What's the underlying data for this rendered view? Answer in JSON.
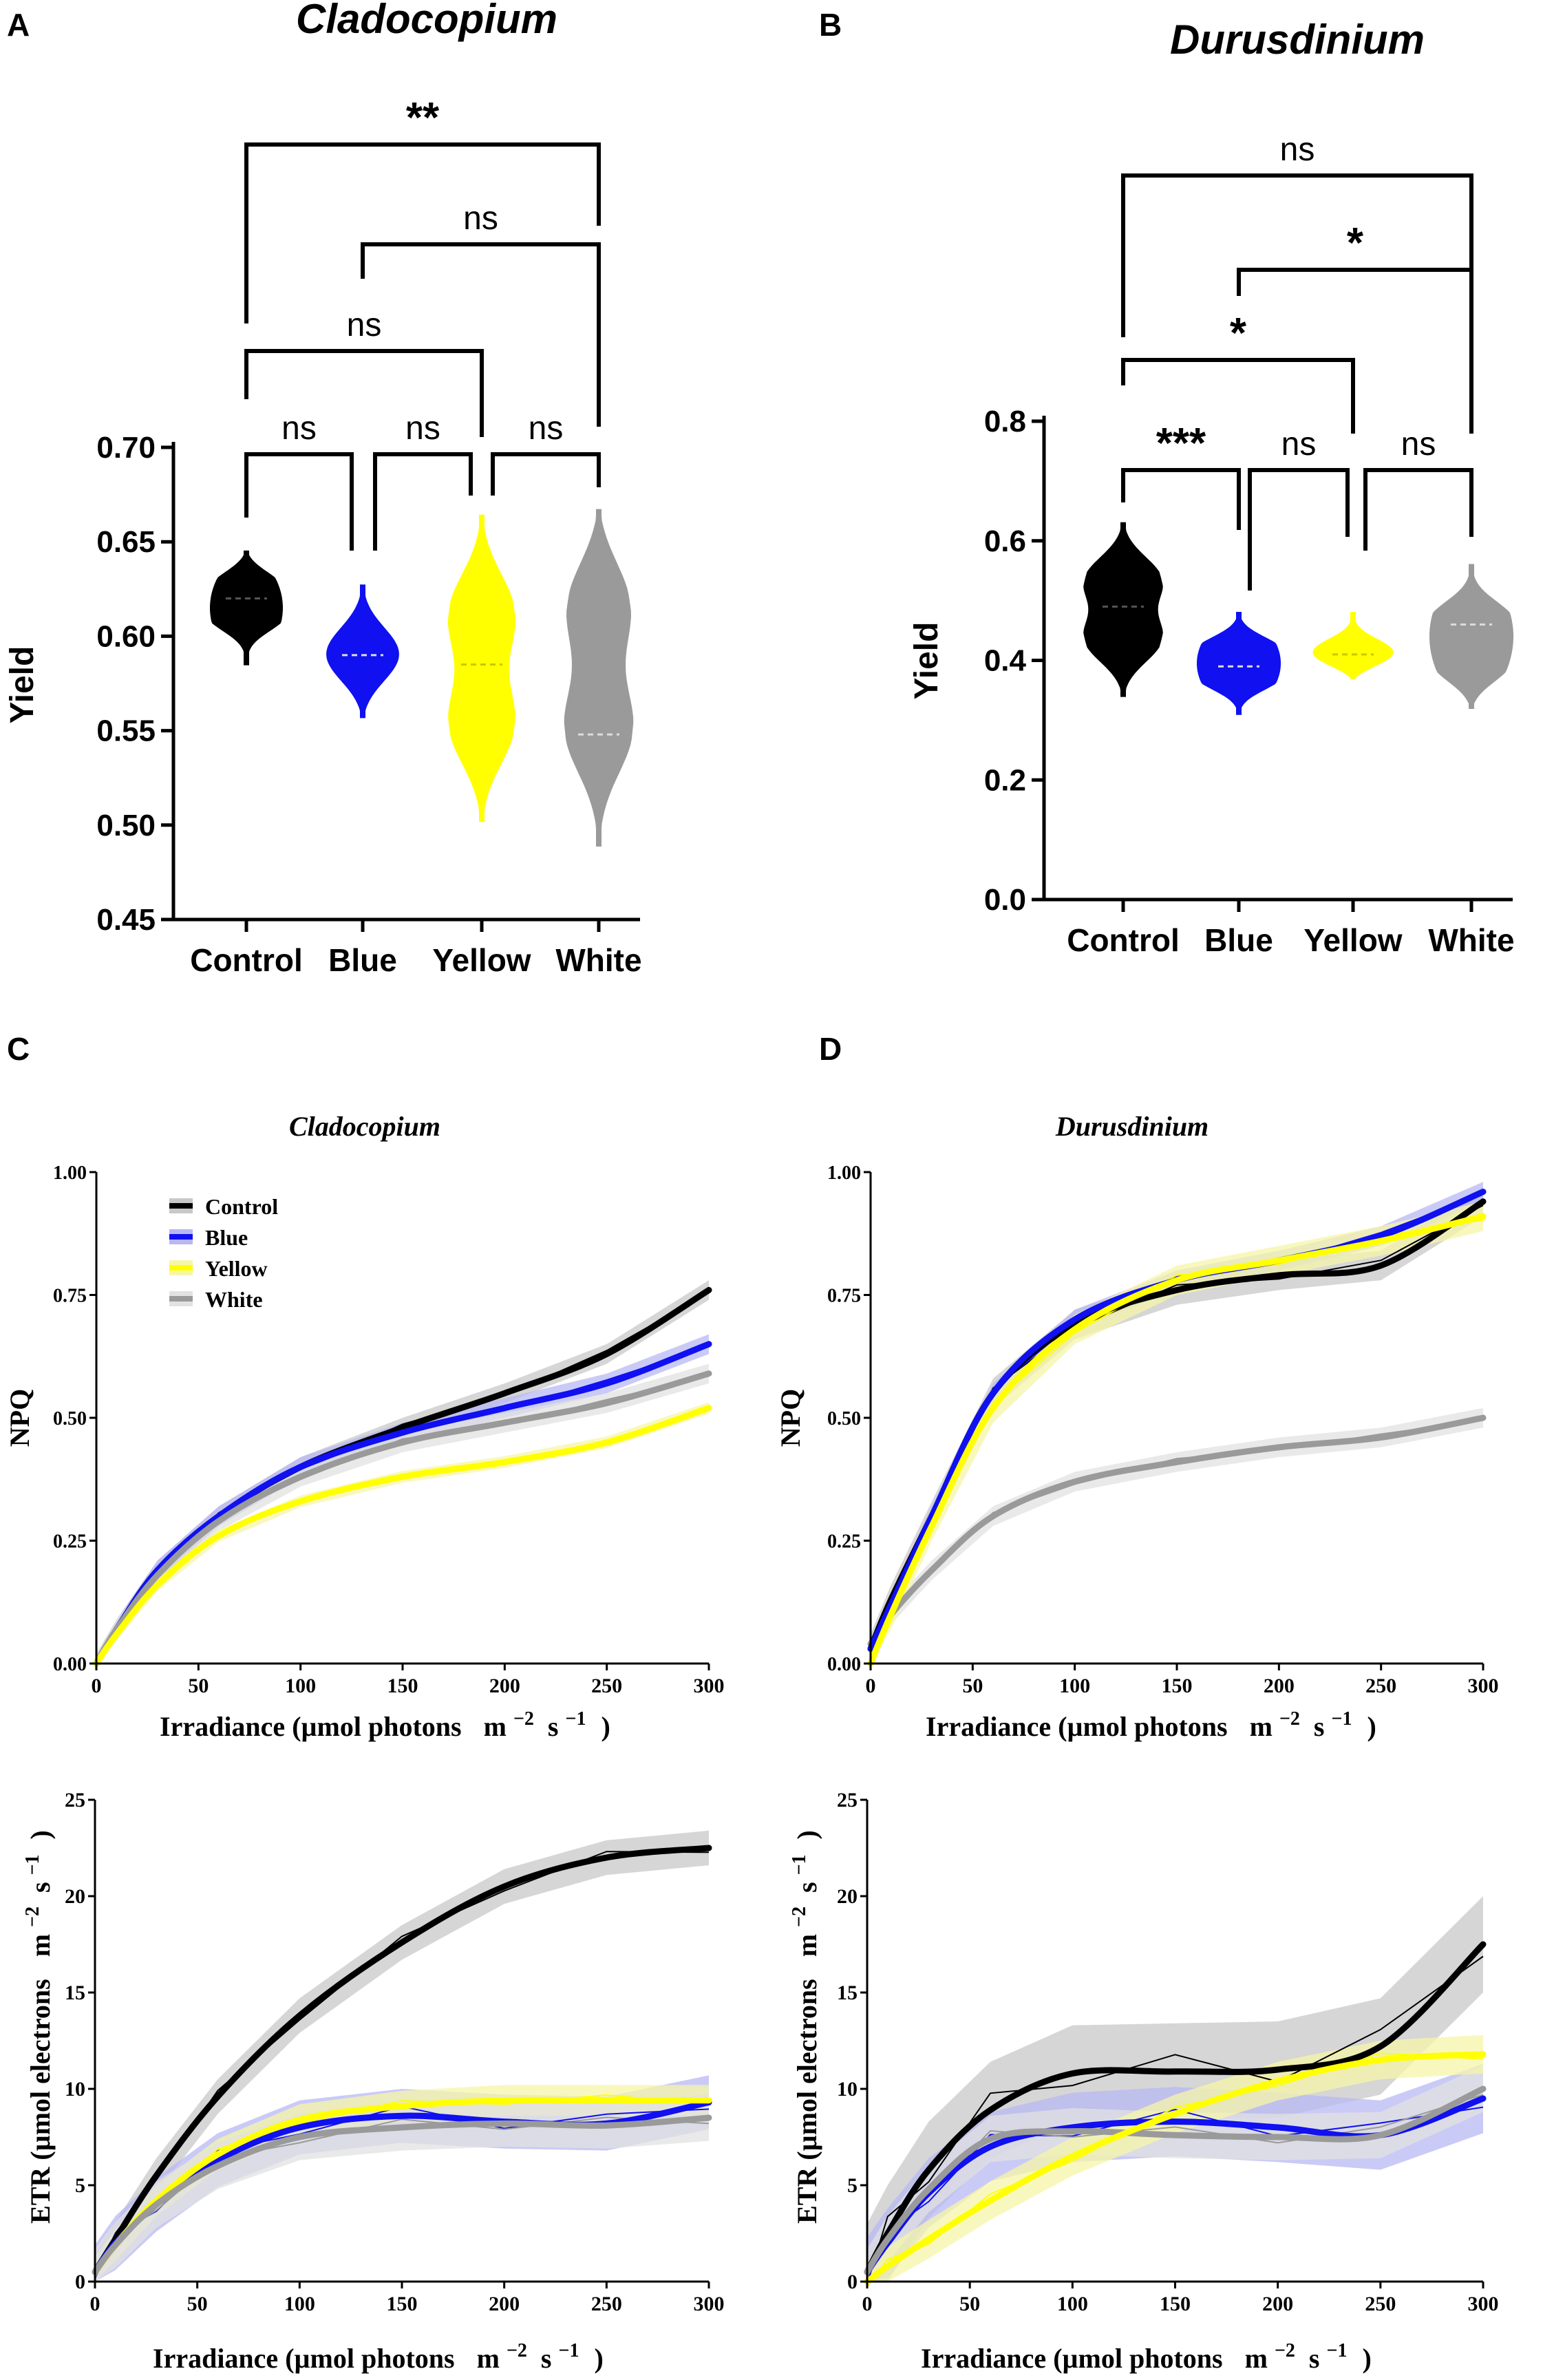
{
  "panels": {
    "A": {
      "letter": "A"
    },
    "B": {
      "letter": "B"
    },
    "C": {
      "letter": "C"
    },
    "D": {
      "letter": "D"
    }
  },
  "colors": {
    "Control": "#000000",
    "Blue": "#1010f0",
    "Yellow": "#ffff00",
    "White": "#9a9a9a",
    "bandControl": "#c8c8c8",
    "bandBlue": "#b8b8f4",
    "bandYellow": "#f6f6a8",
    "bandWhite": "#e2e2e2"
  },
  "chart_data": [
    {
      "id": "A",
      "type": "violin",
      "title": "Cladocopium",
      "ylabel": "Yield",
      "categories": [
        "Control",
        "Blue",
        "Yellow",
        "White"
      ],
      "ylim": [
        0.45,
        0.7
      ],
      "yticks": [
        "0.70",
        "0.65",
        "0.60",
        "0.55",
        "0.50",
        "0.45"
      ],
      "violins": [
        {
          "category": "Control",
          "min": 0.585,
          "max": 0.645,
          "median": 0.62,
          "modes": [
            0.628,
            0.61
          ]
        },
        {
          "category": "Blue",
          "min": 0.557,
          "max": 0.627,
          "median": 0.59,
          "modes": [
            0.59
          ]
        },
        {
          "category": "Yellow",
          "min": 0.502,
          "max": 0.664,
          "median": 0.585,
          "modes": [
            0.615,
            0.55
          ]
        },
        {
          "category": "White",
          "min": 0.489,
          "max": 0.667,
          "median": 0.548,
          "modes": [
            0.548,
            0.62
          ]
        }
      ],
      "significance": [
        {
          "from": "Control",
          "to": "Blue",
          "label": "ns"
        },
        {
          "from": "Blue",
          "to": "Yellow",
          "label": "ns"
        },
        {
          "from": "Yellow",
          "to": "White",
          "label": "ns"
        },
        {
          "from": "Control",
          "to": "Yellow",
          "label": "ns"
        },
        {
          "from": "Blue",
          "to": "White",
          "label": "ns"
        },
        {
          "from": "Control",
          "to": "White",
          "label": "**"
        }
      ]
    },
    {
      "id": "B",
      "type": "violin",
      "title": "Durusdinium",
      "ylabel": "Yield",
      "categories": [
        "Control",
        "Blue",
        "Yellow",
        "White"
      ],
      "ylim": [
        0.0,
        0.8
      ],
      "yticks": [
        "0.8",
        "0.6",
        "0.4",
        "0.2",
        "0.0"
      ],
      "violins": [
        {
          "category": "Control",
          "min": 0.34,
          "max": 0.63,
          "median": 0.49,
          "modes": [
            0.54,
            0.43
          ]
        },
        {
          "category": "Blue",
          "min": 0.31,
          "max": 0.48,
          "median": 0.39,
          "modes": [
            0.42,
            0.37
          ]
        },
        {
          "category": "Yellow",
          "min": 0.37,
          "max": 0.48,
          "median": 0.41,
          "modes": [
            0.41
          ]
        },
        {
          "category": "White",
          "min": 0.32,
          "max": 0.56,
          "median": 0.46,
          "modes": [
            0.47,
            0.39
          ]
        }
      ],
      "significance": [
        {
          "from": "Control",
          "to": "Blue",
          "label": "***"
        },
        {
          "from": "Blue",
          "to": "Yellow",
          "label": "ns"
        },
        {
          "from": "Yellow",
          "to": "White",
          "label": "ns"
        },
        {
          "from": "Control",
          "to": "Yellow",
          "label": "*"
        },
        {
          "from": "Blue",
          "to": "White",
          "label": "*"
        },
        {
          "from": "Control",
          "to": "White",
          "label": "ns"
        }
      ]
    },
    {
      "id": "C-NPQ",
      "type": "line",
      "title": "Cladocopium",
      "xlabel": "Irradiance (µmol photons",
      "xunit": "m",
      "xunit_exp1": "−2",
      "xunit_s": "s",
      "xunit_exp2": "−1",
      "xunit_close": ")",
      "ylabel": "NPQ",
      "xlim": [
        0,
        300
      ],
      "ylim": [
        0,
        1
      ],
      "xticks": [
        "0",
        "50",
        "100",
        "150",
        "200",
        "250",
        "300"
      ],
      "yticks": [
        "0.00",
        "0.25",
        "0.50",
        "0.75",
        "1.00"
      ],
      "legend": [
        "Control",
        "Blue",
        "Yellow",
        "White"
      ],
      "x": [
        0,
        10,
        30,
        60,
        100,
        150,
        200,
        250,
        300
      ],
      "series": [
        {
          "name": "Control",
          "values": [
            0.0,
            0.07,
            0.19,
            0.3,
            0.4,
            0.48,
            0.55,
            0.63,
            0.76
          ],
          "band": 0.02
        },
        {
          "name": "Blue",
          "values": [
            0.0,
            0.07,
            0.19,
            0.3,
            0.4,
            0.47,
            0.52,
            0.57,
            0.65
          ],
          "band": 0.02
        },
        {
          "name": "White",
          "values": [
            0.0,
            0.07,
            0.18,
            0.29,
            0.38,
            0.45,
            0.49,
            0.53,
            0.59
          ],
          "band": 0.02
        },
        {
          "name": "Yellow",
          "values": [
            0.0,
            0.06,
            0.16,
            0.26,
            0.33,
            0.38,
            0.41,
            0.45,
            0.52
          ],
          "band": 0.012
        }
      ]
    },
    {
      "id": "C-ETR",
      "type": "line",
      "xlabel": "Irradiance (µmol photons",
      "xunit": "m",
      "xunit_exp1": "−2",
      "xunit_s": "s",
      "xunit_exp2": "−1",
      "xunit_close": ")",
      "ylabel": "ETR (µmol electrons",
      "yunit": "m",
      "yunit_exp1": "−2",
      "yunit_s": "s",
      "yunit_exp2": "−1",
      "yunit_close": ")",
      "xlim": [
        0,
        300
      ],
      "ylim": [
        0,
        25
      ],
      "xticks": [
        "0",
        "50",
        "100",
        "150",
        "200",
        "250",
        "300"
      ],
      "yticks": [
        "0",
        "5",
        "10",
        "15",
        "20",
        "25"
      ],
      "x": [
        0,
        10,
        30,
        60,
        100,
        150,
        200,
        250,
        300
      ],
      "series": [
        {
          "name": "Control",
          "values": [
            0.5,
            2.2,
            5.5,
            9.6,
            13.8,
            17.6,
            20.5,
            22.0,
            22.5
          ],
          "band": 0.9
        },
        {
          "name": "Blue",
          "values": [
            0.5,
            2.0,
            4.0,
            6.3,
            8.0,
            8.6,
            8.3,
            8.2,
            9.3
          ],
          "band": 1.4
        },
        {
          "name": "Yellow",
          "values": [
            0.5,
            1.9,
            4.2,
            6.6,
            8.4,
            9.1,
            9.4,
            9.4,
            9.4
          ],
          "band": 0.8
        },
        {
          "name": "White",
          "values": [
            0.5,
            1.9,
            4.0,
            6.0,
            7.5,
            8.0,
            8.2,
            8.1,
            8.5
          ],
          "band": 1.2
        }
      ]
    },
    {
      "id": "D-NPQ",
      "type": "line",
      "title": "Durusdinium",
      "xlabel": "Irradiance (µmol photons",
      "xunit": "m",
      "xunit_exp1": "−2",
      "xunit_s": "s",
      "xunit_exp2": "−1",
      "xunit_close": ")",
      "ylabel": "NPQ",
      "xlim": [
        0,
        300
      ],
      "ylim": [
        0,
        1
      ],
      "xticks": [
        "0",
        "50",
        "100",
        "150",
        "200",
        "250",
        "300"
      ],
      "yticks": [
        "0.00",
        "0.25",
        "0.50",
        "0.75",
        "1.00"
      ],
      "x": [
        0,
        10,
        30,
        60,
        100,
        150,
        200,
        250,
        300
      ],
      "series": [
        {
          "name": "White",
          "values": [
            0.04,
            0.1,
            0.19,
            0.3,
            0.37,
            0.41,
            0.44,
            0.46,
            0.5
          ],
          "band": 0.02
        },
        {
          "name": "Control",
          "values": [
            0.03,
            0.13,
            0.3,
            0.55,
            0.69,
            0.76,
            0.79,
            0.81,
            0.94
          ],
          "band": 0.03
        },
        {
          "name": "Blue",
          "values": [
            0.03,
            0.12,
            0.3,
            0.55,
            0.7,
            0.78,
            0.82,
            0.87,
            0.96
          ],
          "band": 0.02
        },
        {
          "name": "Yellow",
          "values": [
            0.0,
            0.1,
            0.28,
            0.52,
            0.68,
            0.78,
            0.82,
            0.86,
            0.91
          ],
          "band": 0.03
        }
      ]
    },
    {
      "id": "D-ETR",
      "type": "line",
      "xlabel": "Irradiance (µmol photons",
      "xunit": "m",
      "xunit_exp1": "−2",
      "xunit_s": "s",
      "xunit_exp2": "−1",
      "xunit_close": ")",
      "ylabel": "ETR (µmol electrons",
      "yunit": "m",
      "yunit_exp1": "−2",
      "yunit_s": "s",
      "yunit_exp2": "−1",
      "yunit_close": ")",
      "xlim": [
        0,
        300
      ],
      "ylim": [
        0,
        25
      ],
      "xticks": [
        "0",
        "50",
        "100",
        "150",
        "200",
        "250",
        "300"
      ],
      "yticks": [
        "0",
        "5",
        "10",
        "15",
        "20",
        "25"
      ],
      "x": [
        0,
        10,
        30,
        60,
        100,
        150,
        200,
        250,
        300
      ],
      "series": [
        {
          "name": "Control",
          "values": [
            0.5,
            2.5,
            5.8,
            8.9,
            10.8,
            10.9,
            11.0,
            12.2,
            17.5
          ],
          "band": 2.5
        },
        {
          "name": "Blue",
          "values": [
            0.5,
            2.0,
            4.6,
            7.0,
            8.0,
            8.3,
            8.0,
            7.6,
            9.5
          ],
          "band": 1.8
        },
        {
          "name": "White",
          "values": [
            0.5,
            2.2,
            4.8,
            7.4,
            7.8,
            7.6,
            7.5,
            7.6,
            10.0
          ],
          "band": 1.2
        },
        {
          "name": "Yellow",
          "values": [
            0.0,
            0.8,
            2.2,
            4.2,
            6.5,
            8.7,
            10.4,
            11.5,
            11.8
          ],
          "band": 1.0
        }
      ]
    }
  ]
}
